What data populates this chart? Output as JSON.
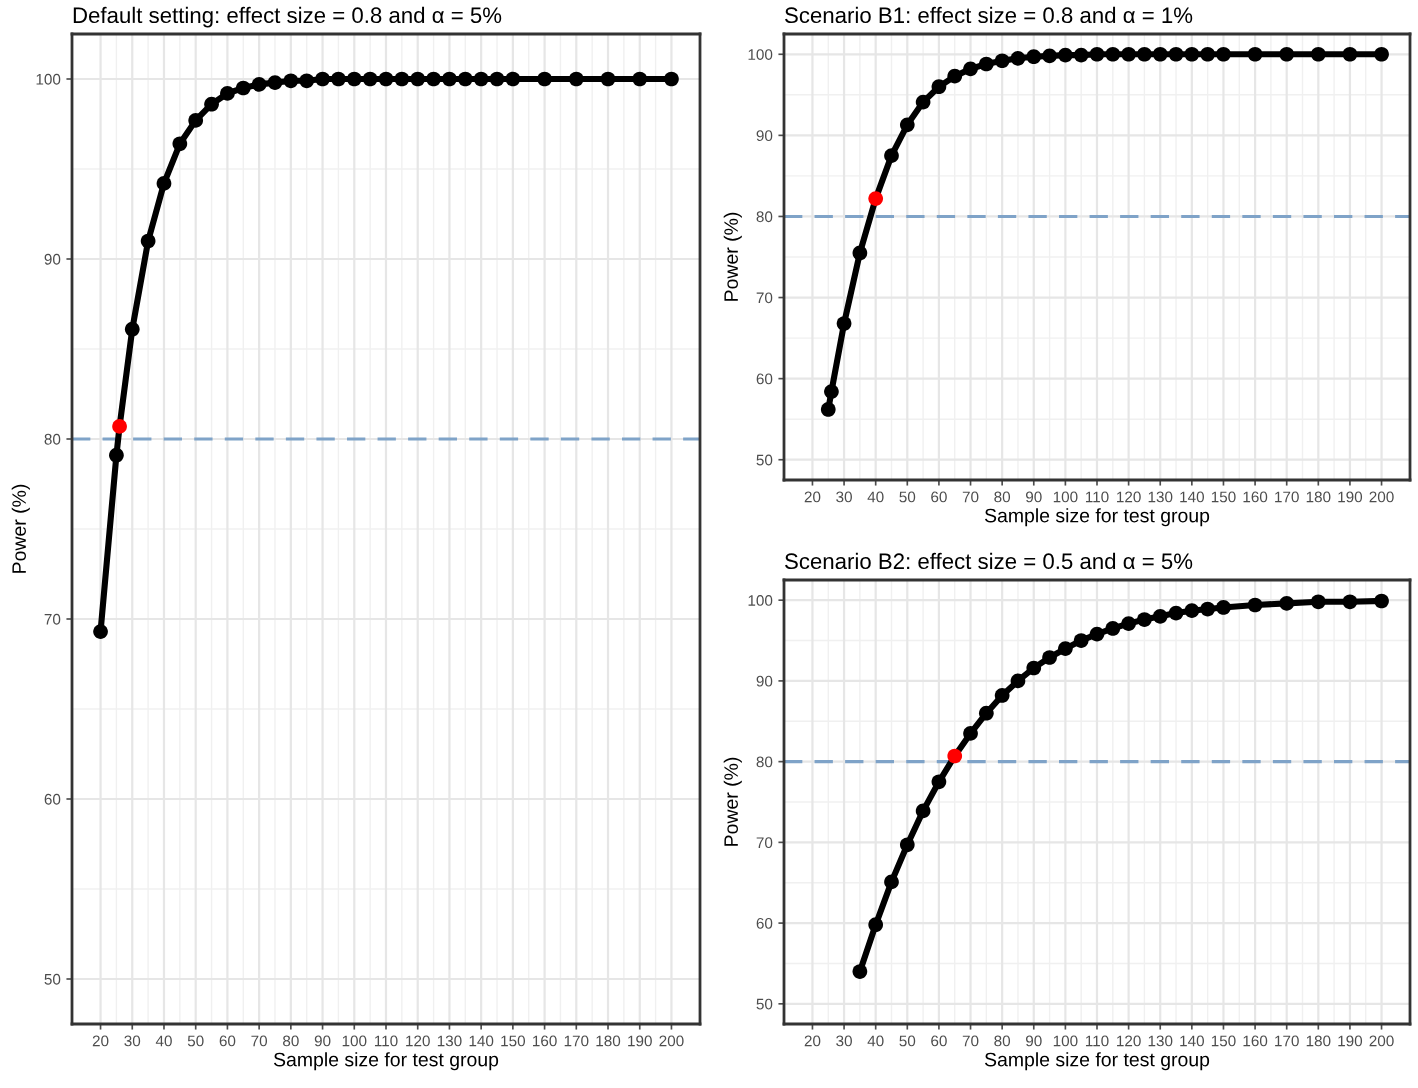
{
  "chart_data": [
    {
      "type": "line",
      "title": "Default setting: effect size = 0.8 and α = 5%",
      "xlabel": "Sample size for test group",
      "ylabel": "Power (%)",
      "xlim": [
        11,
        209
      ],
      "ylim": [
        47.5,
        102.5
      ],
      "xticks": [
        20,
        30,
        40,
        50,
        60,
        70,
        80,
        90,
        100,
        110,
        120,
        130,
        140,
        150,
        160,
        170,
        180,
        190,
        200
      ],
      "yticks": [
        50,
        60,
        70,
        80,
        90,
        100
      ],
      "grid": true,
      "marker": "circle",
      "line_style": "solid",
      "legend": false,
      "series": [
        {
          "color": "#000000",
          "x": [
            20,
            25,
            26,
            30,
            35,
            40,
            45,
            50,
            55,
            60,
            65,
            70,
            75,
            80,
            85,
            90,
            95,
            100,
            105,
            110,
            115,
            120,
            125,
            130,
            135,
            140,
            145,
            150,
            160,
            170,
            180,
            190,
            200
          ],
          "values": [
            69.3,
            79.1,
            80.7,
            86.1,
            91.0,
            94.2,
            96.4,
            97.7,
            98.6,
            99.2,
            99.5,
            99.7,
            99.8,
            99.9,
            99.9,
            100,
            100,
            100,
            100,
            100,
            100,
            100,
            100,
            100,
            100,
            100,
            100,
            100,
            100,
            100,
            100,
            100,
            100
          ],
          "colors": [
            "#000000",
            "#000000",
            "#ff0000",
            "#000000",
            "#000000",
            "#000000",
            "#000000",
            "#000000",
            "#000000",
            "#000000",
            "#000000",
            "#000000",
            "#000000",
            "#000000",
            "#000000",
            "#000000",
            "#000000",
            "#000000",
            "#000000",
            "#000000",
            "#000000",
            "#000000",
            "#000000",
            "#000000",
            "#000000",
            "#000000",
            "#000000",
            "#000000",
            "#000000",
            "#000000",
            "#000000",
            "#000000",
            "#000000"
          ]
        }
      ],
      "ref_lines": [
        {
          "axis": "y",
          "value": 80,
          "color": "#7fa3c8",
          "line_style": "dashed"
        }
      ]
    },
    {
      "type": "line",
      "title": "Scenario B1: effect size = 0.8 and α = 1%",
      "xlabel": "Sample size for test group",
      "ylabel": "Power (%)",
      "xlim": [
        11,
        209
      ],
      "ylim": [
        47.5,
        102.5
      ],
      "xticks": [
        20,
        30,
        40,
        50,
        60,
        70,
        80,
        90,
        100,
        110,
        120,
        130,
        140,
        150,
        160,
        170,
        180,
        190,
        200
      ],
      "yticks": [
        50,
        60,
        70,
        80,
        90,
        100
      ],
      "grid": true,
      "marker": "circle",
      "line_style": "solid",
      "legend": false,
      "series": [
        {
          "color": "#000000",
          "x": [
            25,
            26,
            30,
            35,
            40,
            45,
            50,
            55,
            60,
            65,
            70,
            75,
            80,
            85,
            90,
            95,
            100,
            105,
            110,
            115,
            120,
            125,
            130,
            135,
            140,
            145,
            150,
            160,
            170,
            180,
            190,
            200
          ],
          "values": [
            56.2,
            58.4,
            66.8,
            75.5,
            82.2,
            87.5,
            91.3,
            94.1,
            96.0,
            97.3,
            98.2,
            98.8,
            99.2,
            99.5,
            99.7,
            99.8,
            99.9,
            99.9,
            100,
            100,
            100,
            100,
            100,
            100,
            100,
            100,
            100,
            100,
            100,
            100,
            100,
            100
          ],
          "colors": [
            "#000000",
            "#000000",
            "#000000",
            "#000000",
            "#ff0000",
            "#000000",
            "#000000",
            "#000000",
            "#000000",
            "#000000",
            "#000000",
            "#000000",
            "#000000",
            "#000000",
            "#000000",
            "#000000",
            "#000000",
            "#000000",
            "#000000",
            "#000000",
            "#000000",
            "#000000",
            "#000000",
            "#000000",
            "#000000",
            "#000000",
            "#000000",
            "#000000",
            "#000000",
            "#000000",
            "#000000",
            "#000000"
          ]
        }
      ],
      "ref_lines": [
        {
          "axis": "y",
          "value": 80,
          "color": "#7fa3c8",
          "line_style": "dashed"
        }
      ]
    },
    {
      "type": "line",
      "title": "Scenario B2: effect size = 0.5 and α = 5%",
      "xlabel": "Sample size for test group",
      "ylabel": "Power (%)",
      "xlim": [
        11,
        209
      ],
      "ylim": [
        47.5,
        102.5
      ],
      "xticks": [
        20,
        30,
        40,
        50,
        60,
        70,
        80,
        90,
        100,
        110,
        120,
        130,
        140,
        150,
        160,
        170,
        180,
        190,
        200
      ],
      "yticks": [
        50,
        60,
        70,
        80,
        90,
        100
      ],
      "grid": true,
      "marker": "circle",
      "line_style": "solid",
      "legend": false,
      "series": [
        {
          "color": "#000000",
          "x": [
            35,
            40,
            45,
            50,
            55,
            60,
            65,
            70,
            75,
            80,
            85,
            90,
            95,
            100,
            105,
            110,
            115,
            120,
            125,
            130,
            135,
            140,
            145,
            150,
            160,
            170,
            180,
            190,
            200
          ],
          "values": [
            54.0,
            59.8,
            65.1,
            69.7,
            73.9,
            77.5,
            80.7,
            83.5,
            86.0,
            88.2,
            90.0,
            91.6,
            92.9,
            94.0,
            95.0,
            95.8,
            96.5,
            97.1,
            97.6,
            98.0,
            98.4,
            98.7,
            98.9,
            99.1,
            99.4,
            99.6,
            99.8,
            99.8,
            99.9
          ],
          "colors": [
            "#000000",
            "#000000",
            "#000000",
            "#000000",
            "#000000",
            "#000000",
            "#ff0000",
            "#000000",
            "#000000",
            "#000000",
            "#000000",
            "#000000",
            "#000000",
            "#000000",
            "#000000",
            "#000000",
            "#000000",
            "#000000",
            "#000000",
            "#000000",
            "#000000",
            "#000000",
            "#000000",
            "#000000",
            "#000000",
            "#000000",
            "#000000",
            "#000000",
            "#000000"
          ]
        }
      ],
      "ref_lines": [
        {
          "axis": "y",
          "value": 80,
          "color": "#7fa3c8",
          "line_style": "dashed"
        }
      ]
    }
  ]
}
